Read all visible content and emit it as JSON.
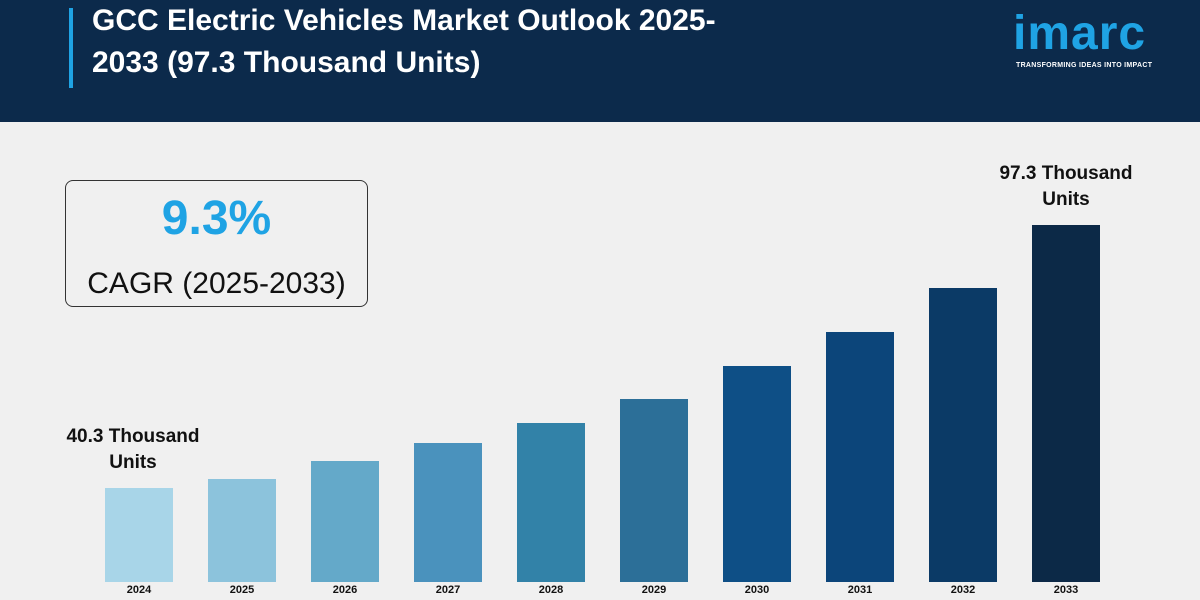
{
  "header": {
    "brand": "imarc",
    "tagline": "TRANSFORMING IDEAS INTO IMPACT"
  },
  "chart_data": {
    "type": "bar",
    "title": "GCC Electric Vehicles Market Outlook 2025-2033 (97.3 Thousand Units)",
    "cagr_value": "9.3%",
    "cagr_label": "CAGR (2025-2033)",
    "categories": [
      "2024",
      "2025",
      "2026",
      "2027",
      "2028",
      "2029",
      "2030",
      "2031",
      "2032",
      "2033"
    ],
    "values": [
      40.3,
      42.3,
      46.2,
      50.1,
      54.5,
      59.7,
      66.8,
      74.2,
      83.7,
      97.3
    ],
    "value_labels": [
      "40.3 Thousand Units",
      null,
      null,
      null,
      null,
      null,
      null,
      null,
      null,
      "97.3 Thousand Units"
    ],
    "colors": [
      "#a8d5e8",
      "#8cc3dc",
      "#64a9c9",
      "#4a92bd",
      "#3282a8",
      "#2c6f98",
      "#0e4f86",
      "#0c457a",
      "#0b3a66",
      "#0c2947"
    ],
    "ylim": [
      20,
      100
    ]
  }
}
